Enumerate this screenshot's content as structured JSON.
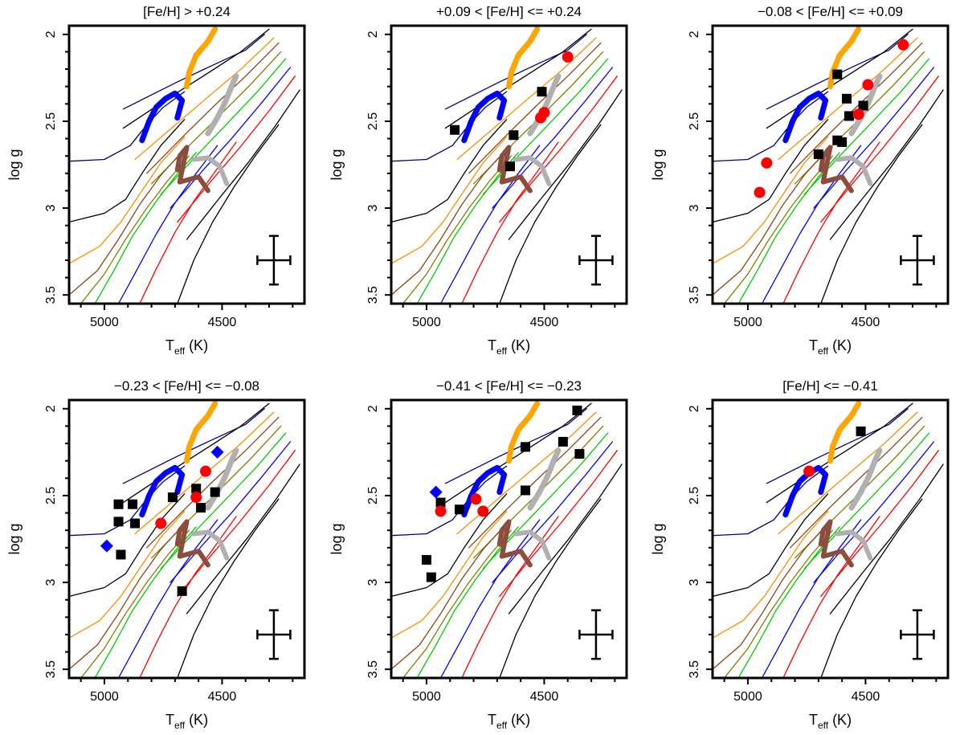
{
  "figure": {
    "xlabel_main": "T",
    "xlabel_sub": "eff",
    "xlabel_unit": " (K)",
    "ylabel": "log g"
  },
  "chart_data": [
    {
      "type": "scatter",
      "title": "[Fe/H] > +0.24",
      "xlim": [
        5150,
        4150
      ],
      "ylim": [
        3.55,
        1.95
      ],
      "xticks": [
        5000,
        4500
      ],
      "yticks": [
        2,
        2.5,
        3,
        3.5
      ],
      "xlabel": "Teff (K)",
      "ylabel": "log g",
      "series": [
        {
          "name": "squares",
          "marker": "square",
          "color": "#000000",
          "points": []
        },
        {
          "name": "circles",
          "marker": "circle",
          "color": "#ff0000",
          "points": []
        },
        {
          "name": "diamonds",
          "marker": "diamond",
          "color": "#0000ff",
          "points": []
        }
      ],
      "error_bar": {
        "x": 4280,
        "y": 3.3,
        "dx": 70,
        "dy": 0.14
      }
    },
    {
      "type": "scatter",
      "title": "+0.09 < [Fe/H] <= +0.24",
      "xlim": [
        5150,
        4150
      ],
      "ylim": [
        3.55,
        1.95
      ],
      "xticks": [
        5000,
        4500
      ],
      "yticks": [
        2,
        2.5,
        3,
        3.5
      ],
      "xlabel": "Teff (K)",
      "ylabel": "log g",
      "series": [
        {
          "name": "squares",
          "marker": "square",
          "color": "#000000",
          "points": [
            [
              4880,
              2.55
            ],
            [
              4630,
              2.58
            ],
            [
              4645,
              2.76
            ],
            [
              4510,
              2.33
            ]
          ]
        },
        {
          "name": "circles",
          "marker": "circle",
          "color": "#ff0000",
          "points": [
            [
              4400,
              2.13
            ],
            [
              4500,
              2.45
            ],
            [
              4515,
              2.48
            ]
          ]
        },
        {
          "name": "diamonds",
          "marker": "diamond",
          "color": "#0000ff",
          "points": []
        }
      ],
      "error_bar": {
        "x": 4280,
        "y": 3.3,
        "dx": 70,
        "dy": 0.14
      }
    },
    {
      "type": "scatter",
      "title": "−0.08 < [Fe/H] <= +0.09",
      "xlim": [
        5150,
        4150
      ],
      "ylim": [
        3.55,
        1.95
      ],
      "xticks": [
        5000,
        4500
      ],
      "yticks": [
        2,
        2.5,
        3,
        3.5
      ],
      "xlabel": "Teff (K)",
      "ylabel": "log g",
      "series": [
        {
          "name": "squares",
          "marker": "square",
          "color": "#000000",
          "points": [
            [
              4620,
              2.23
            ],
            [
              4580,
              2.37
            ],
            [
              4570,
              2.47
            ],
            [
              4510,
              2.41
            ],
            [
              4620,
              2.61
            ],
            [
              4600,
              2.62
            ],
            [
              4700,
              2.69
            ]
          ]
        },
        {
          "name": "circles",
          "marker": "circle",
          "color": "#ff0000",
          "points": [
            [
              4340,
              2.06
            ],
            [
              4490,
              2.29
            ],
            [
              4530,
              2.46
            ],
            [
              4920,
              2.74
            ],
            [
              4950,
              2.91
            ]
          ]
        },
        {
          "name": "diamonds",
          "marker": "diamond",
          "color": "#0000ff",
          "points": []
        }
      ],
      "error_bar": {
        "x": 4280,
        "y": 3.3,
        "dx": 70,
        "dy": 0.14
      }
    },
    {
      "type": "scatter",
      "title": "−0.23 < [Fe/H] <= −0.08",
      "xlim": [
        5150,
        4150
      ],
      "ylim": [
        3.55,
        1.95
      ],
      "xticks": [
        5000,
        4500
      ],
      "yticks": [
        2,
        2.5,
        3,
        3.5
      ],
      "xlabel": "Teff (K)",
      "ylabel": "log g",
      "series": [
        {
          "name": "squares",
          "marker": "square",
          "color": "#000000",
          "points": [
            [
              4940,
              2.55
            ],
            [
              4880,
              2.55
            ],
            [
              4940,
              2.65
            ],
            [
              4870,
              2.66
            ],
            [
              4710,
              2.51
            ],
            [
              4610,
              2.46
            ],
            [
              4590,
              2.57
            ],
            [
              4530,
              2.48
            ],
            [
              4930,
              2.84
            ],
            [
              4670,
              3.05
            ]
          ]
        },
        {
          "name": "circles",
          "marker": "circle",
          "color": "#ff0000",
          "points": [
            [
              4570,
              2.36
            ],
            [
              4610,
              2.51
            ],
            [
              4760,
              2.66
            ]
          ]
        },
        {
          "name": "diamonds",
          "marker": "diamond",
          "color": "#0000ff",
          "points": [
            [
              4520,
              2.25
            ],
            [
              4990,
              2.79
            ]
          ]
        }
      ],
      "error_bar": {
        "x": 4280,
        "y": 3.3,
        "dx": 70,
        "dy": 0.14
      }
    },
    {
      "type": "scatter",
      "title": "−0.41 < [Fe/H] <= −0.23",
      "xlim": [
        5150,
        4150
      ],
      "ylim": [
        3.55,
        1.95
      ],
      "xticks": [
        5000,
        4500
      ],
      "yticks": [
        2,
        2.5,
        3,
        3.5
      ],
      "xlabel": "Teff (K)",
      "ylabel": "log g",
      "series": [
        {
          "name": "squares",
          "marker": "square",
          "color": "#000000",
          "points": [
            [
              4360,
              2.01
            ],
            [
              4420,
              2.19
            ],
            [
              4350,
              2.26
            ],
            [
              4580,
              2.22
            ],
            [
              4580,
              2.47
            ],
            [
              4940,
              2.54
            ],
            [
              4860,
              2.58
            ],
            [
              5000,
              2.87
            ],
            [
              4980,
              2.97
            ]
          ]
        },
        {
          "name": "circles",
          "marker": "circle",
          "color": "#ff0000",
          "points": [
            [
              4940,
              2.59
            ],
            [
              4790,
              2.52
            ],
            [
              4760,
              2.59
            ]
          ]
        },
        {
          "name": "diamonds",
          "marker": "diamond",
          "color": "#0000ff",
          "points": [
            [
              4960,
              2.48
            ]
          ]
        }
      ],
      "error_bar": {
        "x": 4280,
        "y": 3.3,
        "dx": 70,
        "dy": 0.14
      }
    },
    {
      "type": "scatter",
      "title": "[Fe/H] <= −0.41",
      "xlim": [
        5150,
        4150
      ],
      "ylim": [
        3.55,
        1.95
      ],
      "xticks": [
        5000,
        4500
      ],
      "yticks": [
        2,
        2.5,
        3,
        3.5
      ],
      "xlabel": "Teff (K)",
      "ylabel": "log g",
      "series": [
        {
          "name": "squares",
          "marker": "square",
          "color": "#000000",
          "points": [
            [
              4520,
              2.13
            ]
          ]
        },
        {
          "name": "circles",
          "marker": "circle",
          "color": "#ff0000",
          "points": [
            [
              4740,
              2.36
            ]
          ]
        },
        {
          "name": "diamonds",
          "marker": "diamond",
          "color": "#0000ff",
          "points": []
        }
      ],
      "error_bar": {
        "x": 4280,
        "y": 3.3,
        "dx": 70,
        "dy": 0.14
      }
    }
  ],
  "tracks": {
    "isochrones": [
      {
        "name": "iso-navy",
        "color": "#000080",
        "points": [
          [
            4920,
            2.43
          ],
          [
            4700,
            2.28
          ],
          [
            4560,
            2.19
          ],
          [
            4400,
            2.09
          ],
          [
            4320,
            2.0
          ]
        ]
      },
      {
        "name": "iso-black-1",
        "color": "#000000",
        "points": [
          [
            4920,
            2.54
          ],
          [
            4720,
            2.36
          ],
          [
            4580,
            2.24
          ],
          [
            4420,
            2.1
          ],
          [
            4300,
            1.97
          ]
        ]
      },
      {
        "name": "iso-orange-1",
        "color": "#ff8c00",
        "points": [
          [
            4870,
            2.72
          ],
          [
            4680,
            2.5
          ],
          [
            4560,
            2.36
          ],
          [
            4420,
            2.2
          ],
          [
            4280,
            2.02
          ]
        ]
      },
      {
        "name": "iso-brown-1",
        "color": "#8b4513",
        "points": [
          [
            4820,
            2.8
          ],
          [
            4660,
            2.58
          ],
          [
            4540,
            2.42
          ],
          [
            4400,
            2.24
          ],
          [
            4260,
            2.05
          ]
        ]
      },
      {
        "name": "iso-olive-1",
        "color": "#808000",
        "points": [
          [
            4800,
            2.86
          ],
          [
            4640,
            2.64
          ],
          [
            4520,
            2.48
          ],
          [
            4380,
            2.29
          ],
          [
            4250,
            2.1
          ]
        ]
      },
      {
        "name": "iso-green-1",
        "color": "#00cc00",
        "points": [
          [
            4760,
            2.92
          ],
          [
            4610,
            2.7
          ],
          [
            4490,
            2.53
          ],
          [
            4350,
            2.33
          ],
          [
            4230,
            2.14
          ]
        ]
      },
      {
        "name": "iso-blue-1",
        "color": "#0000ff",
        "points": [
          [
            4720,
            3.0
          ],
          [
            4580,
            2.78
          ],
          [
            4460,
            2.6
          ],
          [
            4330,
            2.39
          ],
          [
            4210,
            2.19
          ]
        ]
      },
      {
        "name": "iso-red-1",
        "color": "#ff0000",
        "points": [
          [
            4690,
            3.08
          ],
          [
            4550,
            2.85
          ],
          [
            4430,
            2.66
          ],
          [
            4300,
            2.44
          ],
          [
            4190,
            2.24
          ]
        ]
      },
      {
        "name": "iso-black-2",
        "color": "#000000",
        "points": [
          [
            4650,
            3.18
          ],
          [
            4510,
            2.94
          ],
          [
            4390,
            2.74
          ],
          [
            4270,
            2.52
          ],
          [
            4170,
            2.32
          ]
        ]
      }
    ],
    "lower_isochrones": [
      {
        "name": "iso-navy-low",
        "color": "#000080",
        "points": [
          [
            5150,
            2.73
          ],
          [
            5000,
            2.72
          ],
          [
            4890,
            2.64
          ],
          [
            4820,
            2.52
          ],
          [
            4750,
            2.42
          ],
          [
            4660,
            2.33
          ]
        ]
      },
      {
        "name": "iso-black-low-1",
        "color": "#000000",
        "points": [
          [
            5150,
            3.08
          ],
          [
            5000,
            3.03
          ],
          [
            4910,
            2.95
          ],
          [
            4840,
            2.8
          ],
          [
            4760,
            2.64
          ],
          [
            4660,
            2.49
          ]
        ]
      },
      {
        "name": "iso-orange-low",
        "color": "#ff8c00",
        "points": [
          [
            5150,
            3.32
          ],
          [
            5020,
            3.22
          ],
          [
            4930,
            3.08
          ],
          [
            4840,
            2.9
          ],
          [
            4760,
            2.74
          ],
          [
            4660,
            2.59
          ]
        ]
      },
      {
        "name": "iso-brown-low",
        "color": "#8b4513",
        "points": [
          [
            5150,
            3.5
          ],
          [
            5030,
            3.36
          ],
          [
            4940,
            3.18
          ],
          [
            4850,
            2.98
          ],
          [
            4760,
            2.81
          ],
          [
            4660,
            2.66
          ]
        ]
      },
      {
        "name": "iso-olive-low",
        "color": "#808000",
        "points": [
          [
            5100,
            3.55
          ],
          [
            5000,
            3.38
          ],
          [
            4910,
            3.18
          ],
          [
            4820,
            3.0
          ],
          [
            4730,
            2.84
          ],
          [
            4640,
            2.7
          ]
        ]
      },
      {
        "name": "iso-green-low",
        "color": "#00cc00",
        "points": [
          [
            5040,
            3.55
          ],
          [
            4960,
            3.36
          ],
          [
            4880,
            3.16
          ],
          [
            4790,
            2.98
          ],
          [
            4700,
            2.82
          ],
          [
            4610,
            2.68
          ]
        ]
      },
      {
        "name": "iso-blue-low",
        "color": "#0000ff",
        "points": [
          [
            4940,
            3.55
          ],
          [
            4860,
            3.35
          ],
          [
            4780,
            3.15
          ],
          [
            4700,
            2.97
          ],
          [
            4610,
            2.8
          ],
          [
            4520,
            2.64
          ]
        ]
      },
      {
        "name": "iso-red-low",
        "color": "#ff0000",
        "points": [
          [
            4850,
            3.55
          ],
          [
            4780,
            3.35
          ],
          [
            4700,
            3.14
          ],
          [
            4620,
            2.96
          ],
          [
            4530,
            2.79
          ],
          [
            4440,
            2.62
          ]
        ]
      },
      {
        "name": "iso-black-low-2",
        "color": "#000000",
        "points": [
          [
            4690,
            3.55
          ],
          [
            4620,
            3.3
          ],
          [
            4540,
            3.08
          ],
          [
            4450,
            2.88
          ],
          [
            4360,
            2.7
          ],
          [
            4260,
            2.52
          ]
        ]
      }
    ],
    "thick": [
      {
        "name": "orange-clump",
        "color": "#ffa500",
        "width": 7,
        "points": [
          [
            4650,
            2.3
          ],
          [
            4640,
            2.22
          ],
          [
            4610,
            2.12
          ],
          [
            4560,
            2.04
          ],
          [
            4530,
            1.97
          ]
        ]
      },
      {
        "name": "gray-track-upper",
        "color": "#b0b0b0",
        "width": 7,
        "points": [
          [
            4560,
            2.57
          ],
          [
            4520,
            2.48
          ],
          [
            4490,
            2.4
          ],
          [
            4460,
            2.3
          ],
          [
            4440,
            2.24
          ]
        ]
      },
      {
        "name": "blue-clump",
        "color": "#0000ff",
        "width": 7,
        "points": [
          [
            4840,
            2.61
          ],
          [
            4810,
            2.5
          ],
          [
            4780,
            2.42
          ],
          [
            4740,
            2.37
          ],
          [
            4700,
            2.34
          ],
          [
            4670,
            2.38
          ],
          [
            4690,
            2.48
          ]
        ]
      },
      {
        "name": "brown-clump",
        "color": "#8b4d3c",
        "width": 6,
        "points": [
          [
            4690,
            2.78
          ],
          [
            4680,
            2.7
          ],
          [
            4650,
            2.65
          ],
          [
            4680,
            2.85
          ],
          [
            4600,
            2.82
          ],
          [
            4560,
            2.9
          ]
        ]
      },
      {
        "name": "gray-clump-lower",
        "color": "#b0b0b0",
        "width": 6,
        "points": [
          [
            4620,
            2.72
          ],
          [
            4560,
            2.71
          ],
          [
            4510,
            2.76
          ],
          [
            4480,
            2.86
          ]
        ]
      }
    ]
  }
}
